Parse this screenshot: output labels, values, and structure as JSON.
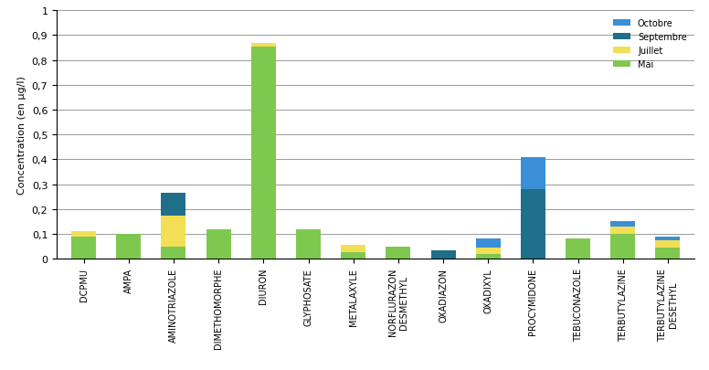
{
  "chart_data": {
    "type": "bar",
    "stacked": true,
    "y_label": "Concentration (en µg/l)",
    "categories": [
      "DCPMU",
      "AMPA",
      "AMINOTRIAZOLE",
      "DIMETHOMORPHE",
      "DIURON",
      "GLYPHOSATE",
      "METALAXYLE",
      "NORFLURAZON DESMETHYL",
      "OXADIAZON",
      "OXADIXYL",
      "PROCYMIDONE",
      "TEBUCONAZOLE",
      "TERBUTYLAZINE",
      "TERBUTYLAZINE DESETHYL"
    ],
    "series": [
      {
        "name": "Mai",
        "color": "#7ec850",
        "values": [
          0.09,
          0.1,
          0.05,
          0.12,
          0.855,
          0.12,
          0.025,
          0.05,
          0,
          0.02,
          0,
          0.08,
          0.1,
          0.045
        ]
      },
      {
        "name": "Juillet",
        "color": "#f2df55",
        "values": [
          0.02,
          0,
          0.125,
          0,
          0.015,
          0,
          0.03,
          0,
          0,
          0.025,
          0,
          0,
          0.03,
          0.03
        ]
      },
      {
        "name": "Septembre",
        "color": "#1f6f8b",
        "values": [
          0,
          0,
          0.09,
          0,
          0,
          0,
          0,
          0,
          0.035,
          0,
          0.28,
          0,
          0,
          0
        ]
      },
      {
        "name": "Octobre",
        "color": "#3a8fd6",
        "values": [
          0,
          0,
          0,
          0,
          0,
          0,
          0,
          0,
          0,
          0.035,
          0.13,
          0,
          0.02,
          0.015
        ]
      }
    ],
    "ylim": [
      0,
      1
    ],
    "yticks": [
      0,
      {
        "value": 0.1,
        "label": "0,1"
      },
      {
        "value": 0.2,
        "label": "0,2"
      },
      {
        "value": 0.3,
        "label": "0,3"
      },
      {
        "value": 0.4,
        "label": "0,4"
      },
      {
        "value": 0.5,
        "label": "0,5"
      },
      {
        "value": 0.6,
        "label": "0,6"
      },
      {
        "value": 0.7,
        "label": "0,7"
      },
      {
        "value": 0.8,
        "label": "0,8"
      },
      {
        "value": 0.9,
        "label": "0,9"
      },
      1
    ],
    "grid": true,
    "legend": "upper right"
  }
}
